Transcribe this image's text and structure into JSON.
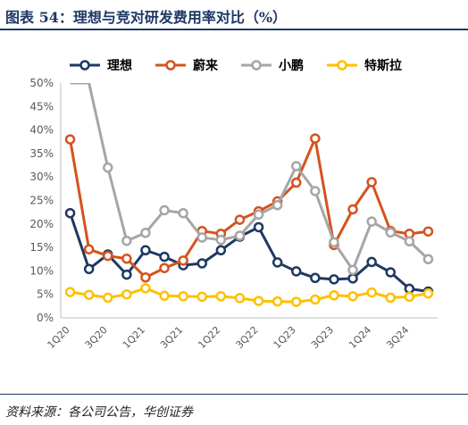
{
  "header": {
    "title": "图表 54：理想与竞对研发费用率对比（%）"
  },
  "source": "资料来源：各公司公告，华创证券",
  "chart_data": {
    "type": "line",
    "title": "",
    "xlabel": "",
    "ylabel": "",
    "ylim": [
      0,
      50
    ],
    "y_ticks": [
      "0%",
      "5%",
      "10%",
      "15%",
      "20%",
      "25%",
      "30%",
      "35%",
      "40%",
      "45%",
      "50%"
    ],
    "x": [
      "1Q20",
      "2Q20",
      "3Q20",
      "4Q20",
      "1Q21",
      "2Q21",
      "3Q21",
      "4Q21",
      "1Q22",
      "2Q22",
      "3Q22",
      "4Q22",
      "1Q23",
      "2Q23",
      "3Q23",
      "4Q23",
      "1Q24",
      "2Q24",
      "3Q24",
      "4Q24"
    ],
    "x_tick_labels": [
      "1Q20",
      "3Q20",
      "1Q21",
      "3Q21",
      "1Q22",
      "3Q22",
      "1Q23",
      "3Q23",
      "1Q24",
      "3Q24"
    ],
    "legend_position": "top",
    "grid": false,
    "series": [
      {
        "name": "理想",
        "color": "#1f3864",
        "values": [
          22.3,
          10.4,
          13.5,
          9.2,
          14.4,
          13.0,
          11.2,
          11.6,
          14.4,
          17.3,
          19.3,
          11.8,
          9.9,
          8.5,
          8.2,
          8.4,
          11.9,
          9.7,
          6.2,
          5.6
        ]
      },
      {
        "name": "蔚来",
        "color": "#d4531e",
        "values": [
          38.0,
          14.6,
          13.2,
          12.6,
          8.6,
          10.6,
          12.2,
          18.5,
          17.9,
          20.9,
          22.7,
          24.8,
          28.8,
          38.2,
          15.5,
          23.1,
          28.9,
          18.5,
          17.9,
          18.4
        ]
      },
      {
        "name": "小鹏",
        "color": "#a6a6a6",
        "values": [
          50.0,
          50.0,
          32.0,
          16.4,
          18.1,
          22.9,
          22.3,
          17.1,
          16.6,
          17.5,
          22.0,
          24.0,
          32.3,
          27.0,
          16.1,
          10.2,
          20.5,
          18.2,
          16.3,
          12.5
        ]
      },
      {
        "name": "特斯拉",
        "color": "#ffc000",
        "values": [
          5.5,
          4.9,
          4.3,
          5.0,
          6.3,
          4.7,
          4.6,
          4.5,
          4.6,
          4.2,
          3.6,
          3.5,
          3.4,
          3.9,
          4.8,
          4.6,
          5.4,
          4.3,
          4.5,
          5.2
        ]
      }
    ]
  }
}
